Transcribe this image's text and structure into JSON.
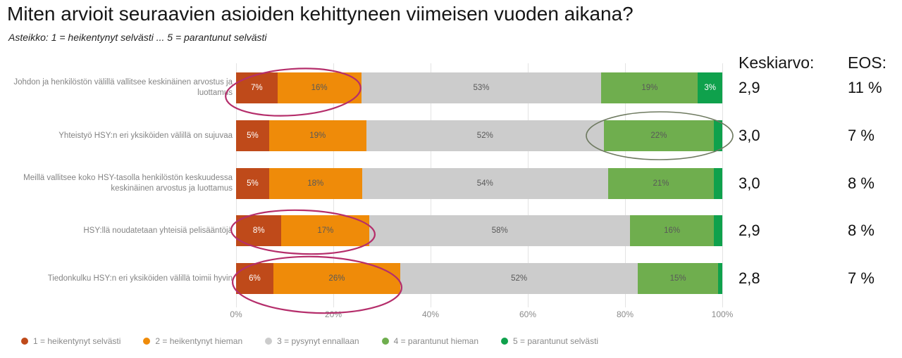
{
  "title": "Miten arvioit seuraavien asioiden kehittyneen viimeisen vuoden aikana?",
  "subtitle": "Asteikko: 1 = heikentynyt selvästi ... 5 = parantunut selvästi",
  "columns": {
    "mean_header": "Keskiarvo:",
    "eos_header": "EOS:"
  },
  "chart_data": {
    "type": "bar",
    "stacked": true,
    "orientation": "horizontal",
    "xlim": [
      0,
      100
    ],
    "x_ticks": [
      "0%",
      "20%",
      "40%",
      "60%",
      "80%",
      "100%"
    ],
    "grid": true,
    "legend_position": "bottom",
    "series_names": [
      "1 = heikentynyt selvästi",
      "2 = heikentynyt hieman",
      "3 = pysynyt ennallaan",
      "4 = parantunut hieman",
      "5 = parantunut selvästi"
    ],
    "series_colors": [
      "#bf4a1a",
      "#ef8b09",
      "#cccccc",
      "#6fae4e",
      "#0fa14c"
    ],
    "series_label_colors": [
      "#ffffff",
      "#595959",
      "#595959",
      "#595959",
      "#ffffff"
    ],
    "min_label_value": 3,
    "rows": [
      {
        "label": "Johdon ja henkilöstön välillä vallitsee keskinäinen arvostus ja luottamus",
        "values": [
          7,
          16,
          53,
          19,
          3
        ],
        "value_labels": [
          "7%",
          "16%",
          "53%",
          "19%",
          "3%"
        ],
        "mean": "2,9",
        "eos": "11 %"
      },
      {
        "label": "Yhteistyö HSY:n eri yksiköiden välillä on sujuvaa",
        "values": [
          5,
          19,
          52,
          22,
          2
        ],
        "value_labels": [
          "5%",
          "19%",
          "52%",
          "22%",
          ""
        ],
        "mean": "3,0",
        "eos": "7 %"
      },
      {
        "label": "Meillä vallitsee koko HSY-tasolla henkilöstön keskuudessa keskinäinen arvostus ja luottamus",
        "values": [
          5,
          18,
          54,
          21,
          2
        ],
        "value_labels": [
          "5%",
          "18%",
          "54%",
          "21%",
          ""
        ],
        "mean": "3,0",
        "eos": "8 %"
      },
      {
        "label": "HSY:llä noudatetaan yhteisiä pelisääntöjä",
        "values": [
          8,
          17,
          58,
          16,
          2
        ],
        "value_labels": [
          "8%",
          "17%",
          "58%",
          "16%",
          ""
        ],
        "mean": "2,9",
        "eos": "8 %"
      },
      {
        "label": "Tiedonkulku HSY:n eri yksiköiden välillä toimii hyvin",
        "values": [
          6,
          26,
          52,
          15,
          1
        ],
        "value_labels": [
          "6%",
          "26%",
          "52%",
          "15%",
          ""
        ],
        "mean": "2,8",
        "eos": "7 %"
      }
    ],
    "annotations": [
      {
        "shape": "ellipse",
        "note": "circled segments 1-2 of row 1",
        "color": "#b52e6b",
        "stroke_width": 2.2,
        "cx": 416,
        "cy": 131,
        "rx": 96,
        "ry": 33,
        "rotate": -4
      },
      {
        "shape": "ellipse",
        "note": "circled segment 4 of row 2",
        "color": "#6e7a60",
        "stroke_width": 1.6,
        "cx": 936,
        "cy": 193,
        "rx": 104,
        "ry": 34,
        "rotate": 0
      },
      {
        "shape": "ellipse",
        "note": "circled segments 1-2 of row 4",
        "color": "#b52e6b",
        "stroke_width": 2.2,
        "cx": 430,
        "cy": 330,
        "rx": 102,
        "ry": 31,
        "rotate": 2
      },
      {
        "shape": "ellipse",
        "note": "circled segments 1-2 of row 5",
        "color": "#b52e6b",
        "stroke_width": 2.2,
        "cx": 450,
        "cy": 405,
        "rx": 120,
        "ry": 40,
        "rotate": 2
      }
    ]
  }
}
